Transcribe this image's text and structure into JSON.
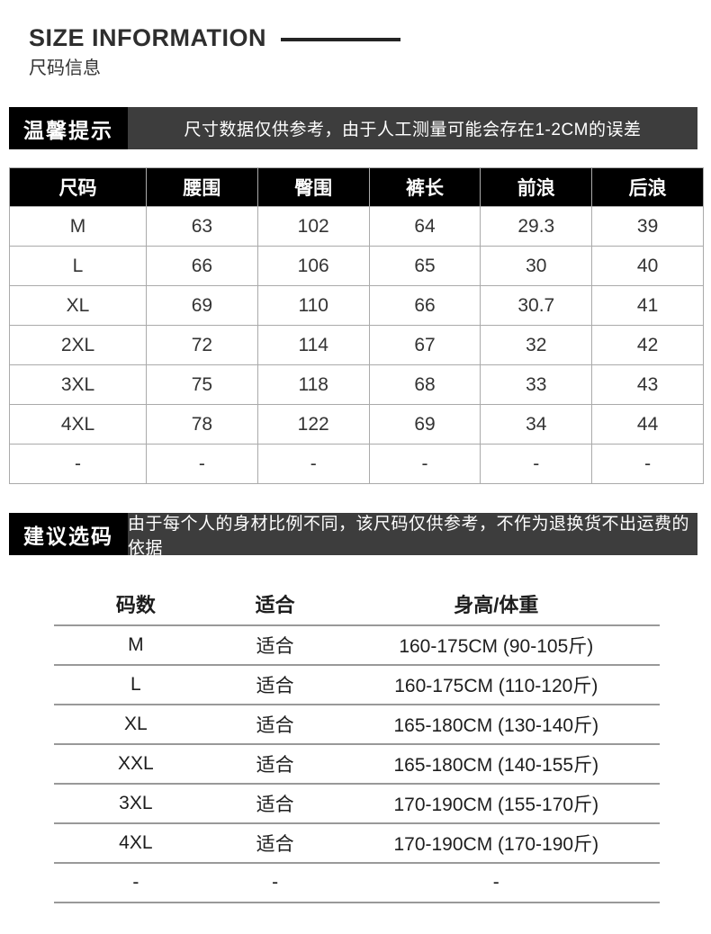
{
  "header": {
    "title_en": "SIZE INFORMATION",
    "title_zh": "尺码信息"
  },
  "notice_banner": {
    "label": "温馨提示",
    "text": "尺寸数据仅供参考，由于人工测量可能会存在1-2CM的误差"
  },
  "size_table": {
    "headers": [
      "尺码",
      "腰围",
      "臀围",
      "裤长",
      "前浪",
      "后浪"
    ],
    "rows": [
      [
        "M",
        "63",
        "102",
        "64",
        "29.3",
        "39"
      ],
      [
        "L",
        "66",
        "106",
        "65",
        "30",
        "40"
      ],
      [
        "XL",
        "69",
        "110",
        "66",
        "30.7",
        "41"
      ],
      [
        "2XL",
        "72",
        "114",
        "67",
        "32",
        "42"
      ],
      [
        "3XL",
        "75",
        "118",
        "68",
        "33",
        "43"
      ],
      [
        "4XL",
        "78",
        "122",
        "69",
        "34",
        "44"
      ],
      [
        "-",
        "-",
        "-",
        "-",
        "-",
        "-"
      ]
    ]
  },
  "advice_banner": {
    "label": "建议选码",
    "text": "由于每个人的身材比例不同，该尺码仅供参考，不作为退换货不出运费的依据"
  },
  "fit_table": {
    "headers": [
      "码数",
      "适合",
      "身高/体重"
    ],
    "rows": [
      [
        "M",
        "适合",
        "160-175CM (90-105斤)"
      ],
      [
        "L",
        "适合",
        "160-175CM (110-120斤)"
      ],
      [
        "XL",
        "适合",
        "165-180CM (130-140斤)"
      ],
      [
        "XXL",
        "适合",
        "165-180CM (140-155斤)"
      ],
      [
        "3XL",
        "适合",
        "170-190CM (155-170斤)"
      ],
      [
        "4XL",
        "适合",
        "170-190CM (170-190斤)"
      ],
      [
        "-",
        "-",
        "-"
      ]
    ]
  },
  "colors": {
    "banner_label_bg": "#000000",
    "banner_text_bg": "#3d3d3d",
    "banner_text_color": "#ffffff",
    "table_header_bg": "#000000",
    "table_header_text": "#ffffff",
    "table_border": "#aaaaaa",
    "fit_table_rule": "#999999",
    "text_dark": "#333333"
  }
}
